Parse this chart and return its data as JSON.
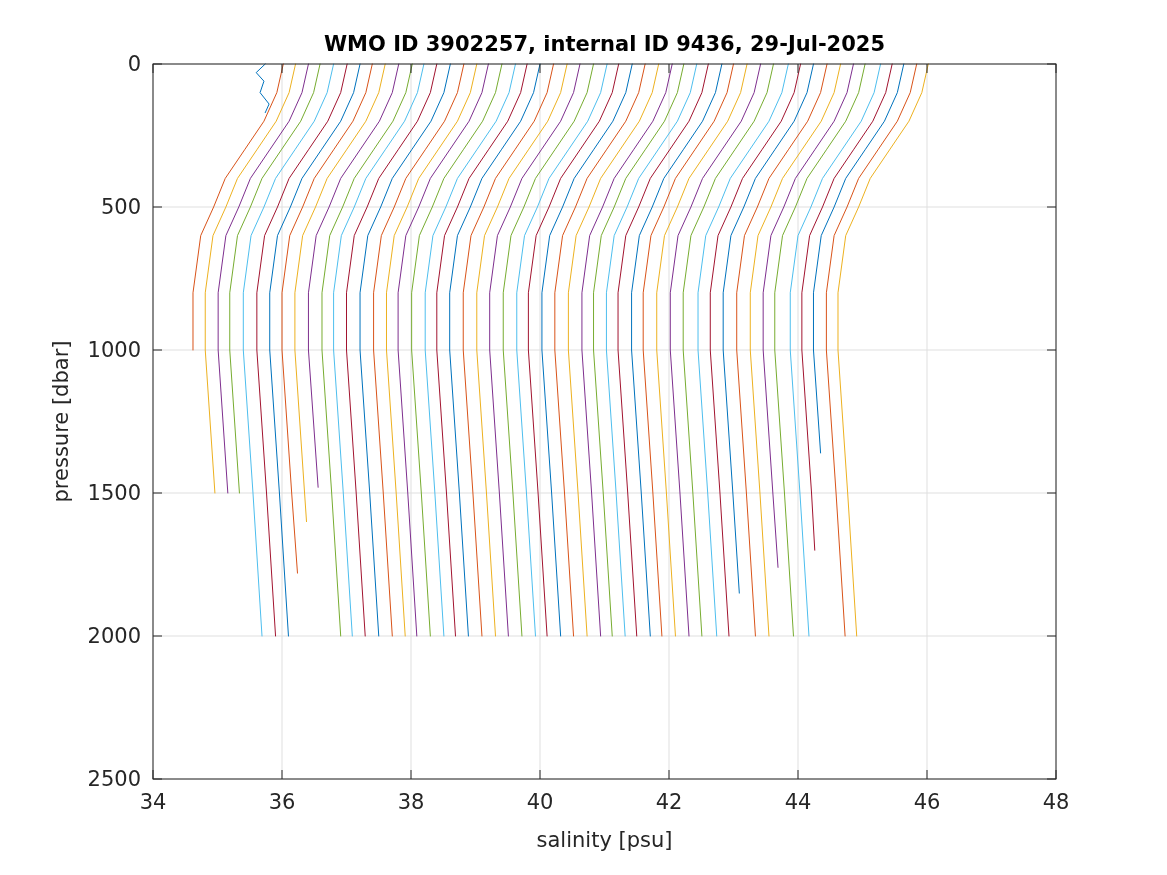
{
  "chart_data": {
    "type": "line",
    "title": "WMO ID 3902257, internal ID 9436, 29-Jul-2025",
    "xlabel": "salinity [psu]",
    "ylabel": "pressure [dbar]",
    "xlim": [
      34,
      48
    ],
    "xticks": [
      34,
      36,
      38,
      40,
      42,
      44,
      46,
      48
    ],
    "ylim": [
      2500,
      0
    ],
    "yticks": [
      0,
      500,
      1000,
      1500,
      2000,
      2500
    ],
    "grid": true,
    "line_style": "solid",
    "series": [
      {
        "color": "#0072bd",
        "x": [
          35.74,
          35.6,
          35.72,
          35.66,
          35.8,
          35.74
        ],
        "values": [
          0,
          30,
          60,
          100,
          140,
          170
        ]
      },
      {
        "color": "#d95319",
        "x": [
          36.02,
          35.92,
          35.72,
          35.42,
          35.12,
          34.94,
          34.74,
          34.62,
          34.62
        ],
        "values": [
          0,
          100,
          200,
          300,
          400,
          500,
          600,
          800,
          1000
        ]
      },
      {
        "color": "#edb120",
        "x": [
          36.21,
          36.11,
          35.91,
          35.61,
          35.31,
          35.13,
          34.93,
          34.81,
          34.81,
          34.96
        ],
        "values": [
          0,
          100,
          200,
          300,
          400,
          500,
          600,
          800,
          1000,
          1500
        ]
      },
      {
        "color": "#7e2f8e",
        "x": [
          36.41,
          36.31,
          36.11,
          35.81,
          35.51,
          35.33,
          35.13,
          35.01,
          35.01,
          35.16
        ],
        "values": [
          0,
          100,
          200,
          300,
          400,
          500,
          600,
          800,
          1000,
          1500
        ]
      },
      {
        "color": "#77ac30",
        "x": [
          36.59,
          36.49,
          36.29,
          35.99,
          35.69,
          35.51,
          35.31,
          35.19,
          35.19,
          35.34
        ],
        "values": [
          0,
          100,
          200,
          300,
          400,
          500,
          600,
          800,
          1000,
          1500
        ]
      },
      {
        "color": "#4dbeee",
        "x": [
          36.8,
          36.7,
          36.5,
          36.2,
          35.9,
          35.72,
          35.52,
          35.4,
          35.4,
          35.55,
          35.69
        ],
        "values": [
          0,
          100,
          200,
          300,
          400,
          500,
          600,
          800,
          1000,
          1500,
          2000
        ]
      },
      {
        "color": "#a2142f",
        "x": [
          37.01,
          36.91,
          36.71,
          36.41,
          36.11,
          35.93,
          35.73,
          35.61,
          35.61,
          35.76,
          35.9
        ],
        "values": [
          0,
          100,
          200,
          300,
          400,
          500,
          600,
          800,
          1000,
          1500,
          2000
        ]
      },
      {
        "color": "#0072bd",
        "x": [
          37.21,
          37.11,
          36.91,
          36.61,
          36.31,
          36.13,
          35.93,
          35.81,
          35.81,
          35.96,
          36.1
        ],
        "values": [
          0,
          100,
          200,
          300,
          400,
          500,
          600,
          800,
          1000,
          1500,
          2000
        ]
      },
      {
        "color": "#d95319",
        "x": [
          37.4,
          37.3,
          37.1,
          36.8,
          36.5,
          36.32,
          36.12,
          36.0,
          36.0,
          36.15,
          36.24
        ],
        "values": [
          0,
          100,
          200,
          300,
          400,
          500,
          600,
          800,
          1000,
          1500,
          1780
        ]
      },
      {
        "color": "#edb120",
        "x": [
          37.6,
          37.5,
          37.3,
          37.0,
          36.7,
          36.52,
          36.32,
          36.2,
          36.2,
          36.35,
          36.38
        ],
        "values": [
          0,
          100,
          200,
          300,
          400,
          500,
          600,
          800,
          1000,
          1500,
          1600
        ]
      },
      {
        "color": "#7e2f8e",
        "x": [
          37.81,
          37.71,
          37.51,
          37.21,
          36.91,
          36.73,
          36.53,
          36.41,
          36.41,
          36.56
        ],
        "values": [
          0,
          100,
          200,
          300,
          400,
          500,
          600,
          800,
          1000,
          1480
        ]
      },
      {
        "color": "#77ac30",
        "x": [
          38.02,
          37.92,
          37.72,
          37.42,
          37.12,
          36.94,
          36.74,
          36.62,
          36.62,
          36.77,
          36.91
        ],
        "values": [
          0,
          100,
          200,
          300,
          400,
          500,
          600,
          800,
          1000,
          1500,
          2000
        ]
      },
      {
        "color": "#4dbeee",
        "x": [
          38.2,
          38.1,
          37.9,
          37.6,
          37.3,
          37.12,
          36.92,
          36.8,
          36.8,
          36.95,
          37.09
        ],
        "values": [
          0,
          100,
          200,
          300,
          400,
          500,
          600,
          800,
          1000,
          1500,
          2000
        ]
      },
      {
        "color": "#a2142f",
        "x": [
          38.4,
          38.3,
          38.1,
          37.8,
          37.5,
          37.32,
          37.12,
          37.0,
          37.0,
          37.15,
          37.29
        ],
        "values": [
          0,
          100,
          200,
          300,
          400,
          500,
          600,
          800,
          1000,
          1500,
          2000
        ]
      },
      {
        "color": "#0072bd",
        "x": [
          38.61,
          38.51,
          38.31,
          38.01,
          37.71,
          37.53,
          37.33,
          37.21,
          37.21,
          37.36,
          37.5
        ],
        "values": [
          0,
          100,
          200,
          300,
          400,
          500,
          600,
          800,
          1000,
          1500,
          2000
        ]
      },
      {
        "color": "#d95319",
        "x": [
          38.82,
          38.72,
          38.52,
          38.22,
          37.92,
          37.74,
          37.54,
          37.42,
          37.42,
          37.57,
          37.71
        ],
        "values": [
          0,
          100,
          200,
          300,
          400,
          500,
          600,
          800,
          1000,
          1500,
          2000
        ]
      },
      {
        "color": "#edb120",
        "x": [
          39.02,
          38.92,
          38.72,
          38.42,
          38.12,
          37.94,
          37.74,
          37.62,
          37.62,
          37.77,
          37.91
        ],
        "values": [
          0,
          100,
          200,
          300,
          400,
          500,
          600,
          800,
          1000,
          1500,
          2000
        ]
      },
      {
        "color": "#7e2f8e",
        "x": [
          39.2,
          39.1,
          38.9,
          38.6,
          38.3,
          38.12,
          37.92,
          37.8,
          37.8,
          37.95,
          38.09
        ],
        "values": [
          0,
          100,
          200,
          300,
          400,
          500,
          600,
          800,
          1000,
          1500,
          2000
        ]
      },
      {
        "color": "#77ac30",
        "x": [
          39.41,
          39.31,
          39.11,
          38.81,
          38.51,
          38.33,
          38.13,
          38.01,
          38.01,
          38.16,
          38.3
        ],
        "values": [
          0,
          100,
          200,
          300,
          400,
          500,
          600,
          800,
          1000,
          1500,
          2000
        ]
      },
      {
        "color": "#4dbeee",
        "x": [
          39.62,
          39.52,
          39.32,
          39.02,
          38.72,
          38.54,
          38.34,
          38.22,
          38.22,
          38.37,
          38.51
        ],
        "values": [
          0,
          100,
          200,
          300,
          400,
          500,
          600,
          800,
          1000,
          1500,
          2000
        ]
      },
      {
        "color": "#a2142f",
        "x": [
          39.8,
          39.7,
          39.5,
          39.2,
          38.9,
          38.72,
          38.52,
          38.4,
          38.4,
          38.55,
          38.69
        ],
        "values": [
          0,
          100,
          200,
          300,
          400,
          500,
          600,
          800,
          1000,
          1500,
          2000
        ]
      },
      {
        "color": "#0072bd",
        "x": [
          40.0,
          39.9,
          39.7,
          39.4,
          39.1,
          38.92,
          38.72,
          38.6,
          38.6,
          38.75,
          38.89
        ],
        "values": [
          0,
          100,
          200,
          300,
          400,
          500,
          600,
          800,
          1000,
          1500,
          2000
        ]
      },
      {
        "color": "#d95319",
        "x": [
          40.21,
          40.11,
          39.91,
          39.61,
          39.31,
          39.13,
          38.93,
          38.81,
          38.81,
          38.96,
          39.1
        ],
        "values": [
          0,
          100,
          200,
          300,
          400,
          500,
          600,
          800,
          1000,
          1500,
          2000
        ]
      },
      {
        "color": "#edb120",
        "x": [
          40.42,
          40.32,
          40.12,
          39.82,
          39.52,
          39.34,
          39.14,
          39.02,
          39.02,
          39.17,
          39.31
        ],
        "values": [
          0,
          100,
          200,
          300,
          400,
          500,
          600,
          800,
          1000,
          1500,
          2000
        ]
      },
      {
        "color": "#7e2f8e",
        "x": [
          40.62,
          40.52,
          40.32,
          40.02,
          39.72,
          39.54,
          39.34,
          39.22,
          39.22,
          39.37,
          39.51
        ],
        "values": [
          0,
          100,
          200,
          300,
          400,
          500,
          600,
          800,
          1000,
          1500,
          2000
        ]
      },
      {
        "color": "#77ac30",
        "x": [
          40.83,
          40.73,
          40.53,
          40.23,
          39.93,
          39.75,
          39.55,
          39.43,
          39.43,
          39.58,
          39.72
        ],
        "values": [
          0,
          100,
          200,
          300,
          400,
          500,
          600,
          800,
          1000,
          1500,
          2000
        ]
      },
      {
        "color": "#4dbeee",
        "x": [
          41.04,
          40.94,
          40.74,
          40.44,
          40.14,
          39.96,
          39.76,
          39.64,
          39.64,
          39.79,
          39.93
        ],
        "values": [
          0,
          100,
          200,
          300,
          400,
          500,
          600,
          800,
          1000,
          1500,
          2000
        ]
      },
      {
        "color": "#a2142f",
        "x": [
          41.22,
          41.12,
          40.92,
          40.62,
          40.32,
          40.14,
          39.94,
          39.82,
          39.82,
          39.97,
          40.11
        ],
        "values": [
          0,
          100,
          200,
          300,
          400,
          500,
          600,
          800,
          1000,
          1500,
          2000
        ]
      },
      {
        "color": "#0072bd",
        "x": [
          41.43,
          41.33,
          41.13,
          40.83,
          40.53,
          40.35,
          40.15,
          40.03,
          40.03,
          40.18,
          40.32
        ],
        "values": [
          0,
          100,
          200,
          300,
          400,
          500,
          600,
          800,
          1000,
          1500,
          2000
        ]
      },
      {
        "color": "#d95319",
        "x": [
          41.63,
          41.53,
          41.33,
          41.03,
          40.73,
          40.55,
          40.35,
          40.23,
          40.23,
          40.38,
          40.52
        ],
        "values": [
          0,
          100,
          200,
          300,
          400,
          500,
          600,
          800,
          1000,
          1500,
          2000
        ]
      },
      {
        "color": "#edb120",
        "x": [
          41.84,
          41.74,
          41.54,
          41.24,
          40.94,
          40.76,
          40.56,
          40.44,
          40.44,
          40.59,
          40.73
        ],
        "values": [
          0,
          100,
          200,
          300,
          400,
          500,
          600,
          800,
          1000,
          1500,
          2000
        ]
      },
      {
        "color": "#7e2f8e",
        "x": [
          42.05,
          41.95,
          41.75,
          41.45,
          41.15,
          40.97,
          40.77,
          40.65,
          40.65,
          40.8,
          40.94
        ],
        "values": [
          0,
          100,
          200,
          300,
          400,
          500,
          600,
          800,
          1000,
          1500,
          2000
        ]
      },
      {
        "color": "#77ac30",
        "x": [
          42.23,
          42.13,
          41.93,
          41.63,
          41.33,
          41.15,
          40.95,
          40.83,
          40.83,
          40.98,
          41.12
        ],
        "values": [
          0,
          100,
          200,
          300,
          400,
          500,
          600,
          800,
          1000,
          1500,
          2000
        ]
      },
      {
        "color": "#4dbeee",
        "x": [
          42.43,
          42.33,
          42.13,
          41.83,
          41.53,
          41.35,
          41.15,
          41.03,
          41.03,
          41.18,
          41.32
        ],
        "values": [
          0,
          100,
          200,
          300,
          400,
          500,
          600,
          800,
          1000,
          1500,
          2000
        ]
      },
      {
        "color": "#a2142f",
        "x": [
          42.61,
          42.51,
          42.31,
          42.01,
          41.71,
          41.53,
          41.33,
          41.21,
          41.21,
          41.36,
          41.5
        ],
        "values": [
          0,
          100,
          200,
          300,
          400,
          500,
          600,
          800,
          1000,
          1500,
          2000
        ]
      },
      {
        "color": "#0072bd",
        "x": [
          42.82,
          42.72,
          42.52,
          42.22,
          41.92,
          41.74,
          41.54,
          41.42,
          41.42,
          41.57,
          41.71
        ],
        "values": [
          0,
          100,
          200,
          300,
          400,
          500,
          600,
          800,
          1000,
          1500,
          2000
        ]
      },
      {
        "color": "#d95319",
        "x": [
          43.0,
          42.9,
          42.7,
          42.4,
          42.1,
          41.92,
          41.72,
          41.6,
          41.6,
          41.75,
          41.89
        ],
        "values": [
          0,
          100,
          200,
          300,
          400,
          500,
          600,
          800,
          1000,
          1500,
          2000
        ]
      },
      {
        "color": "#edb120",
        "x": [
          43.21,
          43.11,
          42.91,
          42.61,
          42.31,
          42.13,
          41.93,
          41.81,
          41.81,
          41.96,
          42.1
        ],
        "values": [
          0,
          100,
          200,
          300,
          400,
          500,
          600,
          800,
          1000,
          1500,
          2000
        ]
      },
      {
        "color": "#7e2f8e",
        "x": [
          43.42,
          43.32,
          43.12,
          42.82,
          42.52,
          42.34,
          42.14,
          42.02,
          42.02,
          42.17,
          42.31
        ],
        "values": [
          0,
          100,
          200,
          300,
          400,
          500,
          600,
          800,
          1000,
          1500,
          2000
        ]
      },
      {
        "color": "#77ac30",
        "x": [
          43.62,
          43.52,
          43.32,
          43.02,
          42.72,
          42.54,
          42.34,
          42.22,
          42.22,
          42.37,
          42.51
        ],
        "values": [
          0,
          100,
          200,
          300,
          400,
          500,
          600,
          800,
          1000,
          1500,
          2000
        ]
      },
      {
        "color": "#4dbeee",
        "x": [
          43.85,
          43.75,
          43.55,
          43.25,
          42.95,
          42.77,
          42.57,
          42.45,
          42.45,
          42.6,
          42.74
        ],
        "values": [
          0,
          100,
          200,
          300,
          400,
          500,
          600,
          800,
          1000,
          1500,
          2000
        ]
      },
      {
        "color": "#a2142f",
        "x": [
          44.04,
          43.94,
          43.74,
          43.44,
          43.14,
          42.96,
          42.76,
          42.64,
          42.64,
          42.79,
          42.93
        ],
        "values": [
          0,
          100,
          200,
          300,
          400,
          500,
          600,
          800,
          1000,
          1500,
          2000
        ]
      },
      {
        "color": "#0072bd",
        "x": [
          44.24,
          44.14,
          43.94,
          43.64,
          43.34,
          43.16,
          42.96,
          42.84,
          42.84,
          42.99,
          43.09
        ],
        "values": [
          0,
          100,
          200,
          300,
          400,
          500,
          600,
          800,
          1000,
          1500,
          1850
        ]
      },
      {
        "color": "#d95319",
        "x": [
          44.45,
          44.35,
          44.15,
          43.85,
          43.55,
          43.37,
          43.17,
          43.05,
          43.05,
          43.2,
          43.34
        ],
        "values": [
          0,
          100,
          200,
          300,
          400,
          500,
          600,
          800,
          1000,
          1500,
          2000
        ]
      },
      {
        "color": "#edb120",
        "x": [
          44.66,
          44.56,
          44.36,
          44.06,
          43.76,
          43.58,
          43.38,
          43.26,
          43.26,
          43.41,
          43.55
        ],
        "values": [
          0,
          100,
          200,
          300,
          400,
          500,
          600,
          800,
          1000,
          1500,
          2000
        ]
      },
      {
        "color": "#7e2f8e",
        "x": [
          44.86,
          44.76,
          44.56,
          44.26,
          43.96,
          43.78,
          43.58,
          43.46,
          43.46,
          43.61,
          43.69
        ],
        "values": [
          0,
          100,
          200,
          300,
          400,
          500,
          600,
          800,
          1000,
          1500,
          1760
        ]
      },
      {
        "color": "#77ac30",
        "x": [
          45.04,
          44.94,
          44.74,
          44.44,
          44.14,
          43.96,
          43.76,
          43.64,
          43.64,
          43.79,
          43.93
        ],
        "values": [
          0,
          100,
          200,
          300,
          400,
          500,
          600,
          800,
          1000,
          1500,
          2000
        ]
      },
      {
        "color": "#4dbeee",
        "x": [
          45.28,
          45.18,
          44.98,
          44.68,
          44.38,
          44.2,
          44.0,
          43.88,
          43.88,
          44.03,
          44.17
        ],
        "values": [
          0,
          100,
          200,
          300,
          400,
          500,
          600,
          800,
          1000,
          1500,
          2000
        ]
      },
      {
        "color": "#a2142f",
        "x": [
          45.46,
          45.36,
          45.16,
          44.86,
          44.56,
          44.38,
          44.18,
          44.06,
          44.06,
          44.21,
          44.26
        ],
        "values": [
          0,
          100,
          200,
          300,
          400,
          500,
          600,
          800,
          1000,
          1500,
          1700
        ]
      },
      {
        "color": "#0072bd",
        "x": [
          45.64,
          45.54,
          45.34,
          45.04,
          44.74,
          44.56,
          44.36,
          44.24,
          44.24,
          44.35
        ],
        "values": [
          0,
          100,
          200,
          300,
          400,
          500,
          600,
          800,
          1000,
          1360
        ]
      },
      {
        "color": "#d95319",
        "x": [
          45.84,
          45.74,
          45.54,
          45.24,
          44.94,
          44.76,
          44.56,
          44.44,
          44.44,
          44.59,
          44.73
        ],
        "values": [
          0,
          100,
          200,
          300,
          400,
          500,
          600,
          800,
          1000,
          1500,
          2000
        ]
      },
      {
        "color": "#edb120",
        "x": [
          46.02,
          45.92,
          45.72,
          45.42,
          45.12,
          44.94,
          44.74,
          44.62,
          44.62,
          44.77,
          44.91
        ],
        "values": [
          0,
          100,
          200,
          300,
          400,
          500,
          600,
          800,
          1000,
          1500,
          2000
        ]
      }
    ]
  }
}
